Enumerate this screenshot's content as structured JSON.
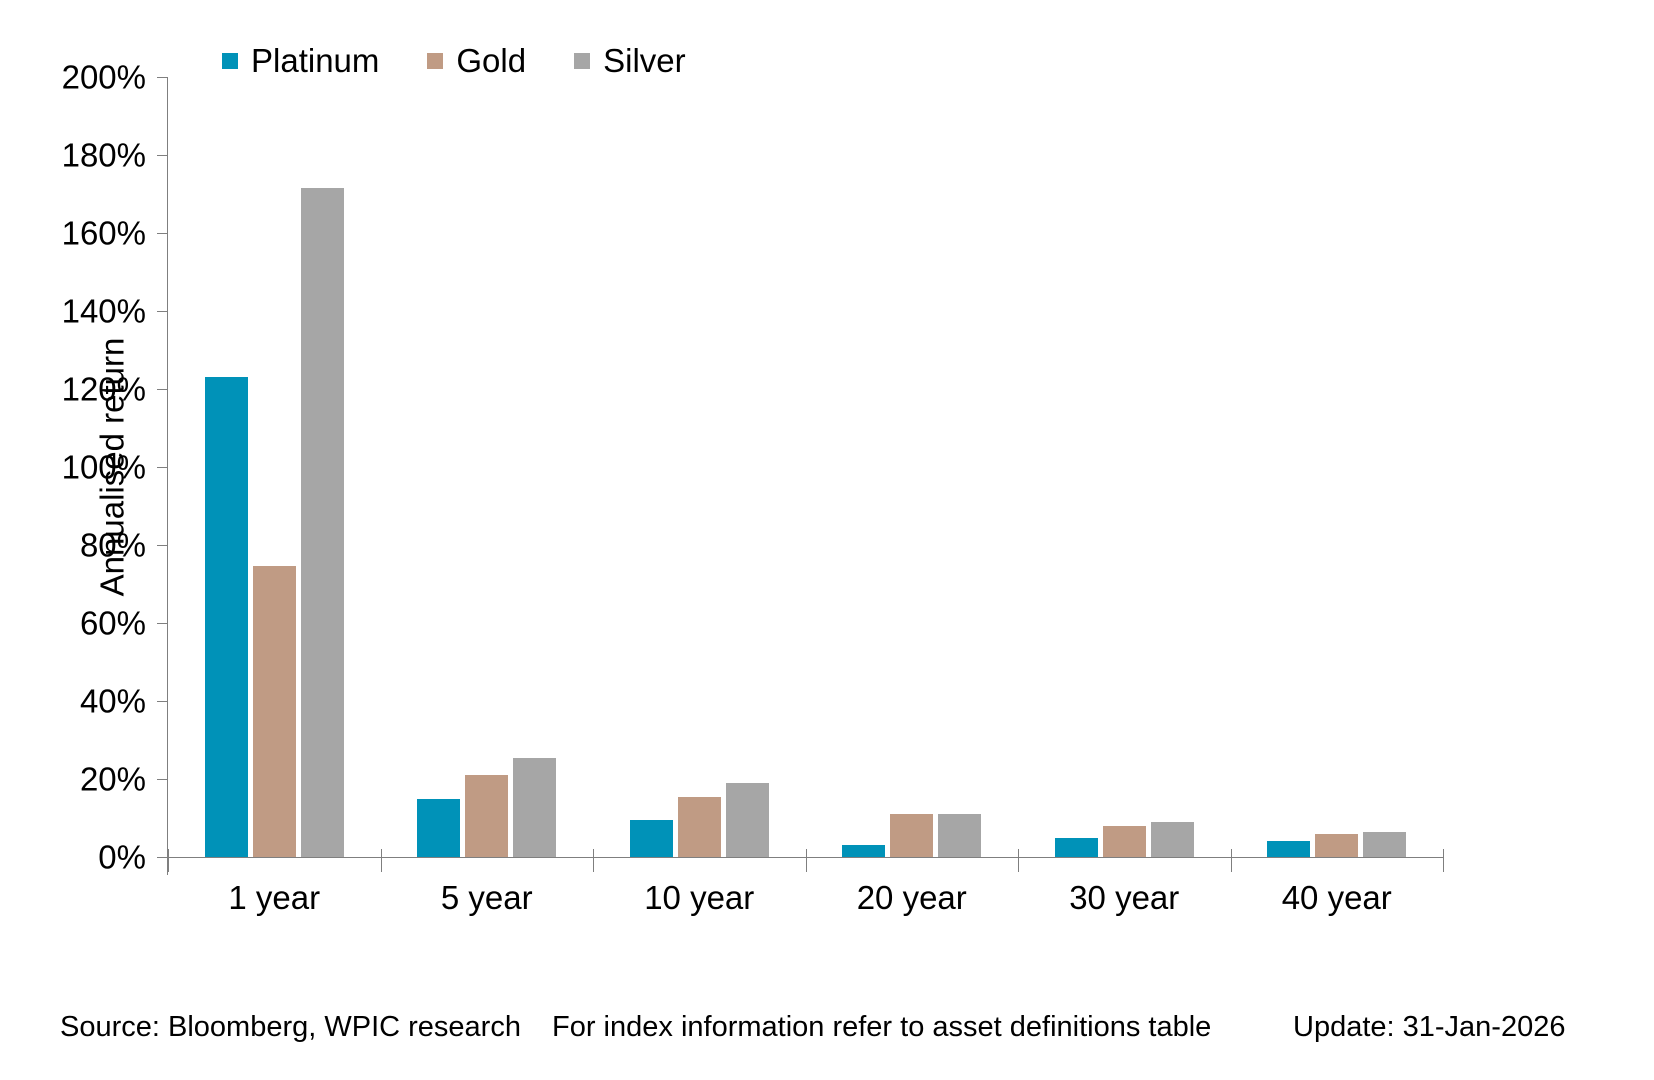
{
  "chart_data": {
    "type": "bar",
    "title": "",
    "xlabel": "",
    "ylabel": "Annualised return",
    "categories": [
      "1 year",
      "5 year",
      "10 year",
      "20 year",
      "30 year",
      "40 year"
    ],
    "series": [
      {
        "name": "Platinum",
        "color": "#0092B8",
        "values": [
          123,
          15,
          9.5,
          3,
          5,
          4
        ]
      },
      {
        "name": "Gold",
        "color": "#C09B84",
        "values": [
          74.5,
          21,
          15.5,
          11,
          8,
          6
        ]
      },
      {
        "name": "Silver",
        "color": "#A6A6A6",
        "values": [
          171.5,
          25.5,
          19,
          11,
          9,
          6.5
        ]
      }
    ],
    "y_axis": {
      "min": 0,
      "max": 200,
      "step": 20,
      "tick_suffix": "%"
    },
    "ylim": [
      0,
      200
    ],
    "legend_position": "top",
    "grid": false,
    "axis_color": "#7f7f7f"
  },
  "footer": {
    "source": "Source: Bloomberg, WPIC research",
    "note": "For index information refer to asset definitions table",
    "update": "Update: 31-Jan-2026"
  }
}
